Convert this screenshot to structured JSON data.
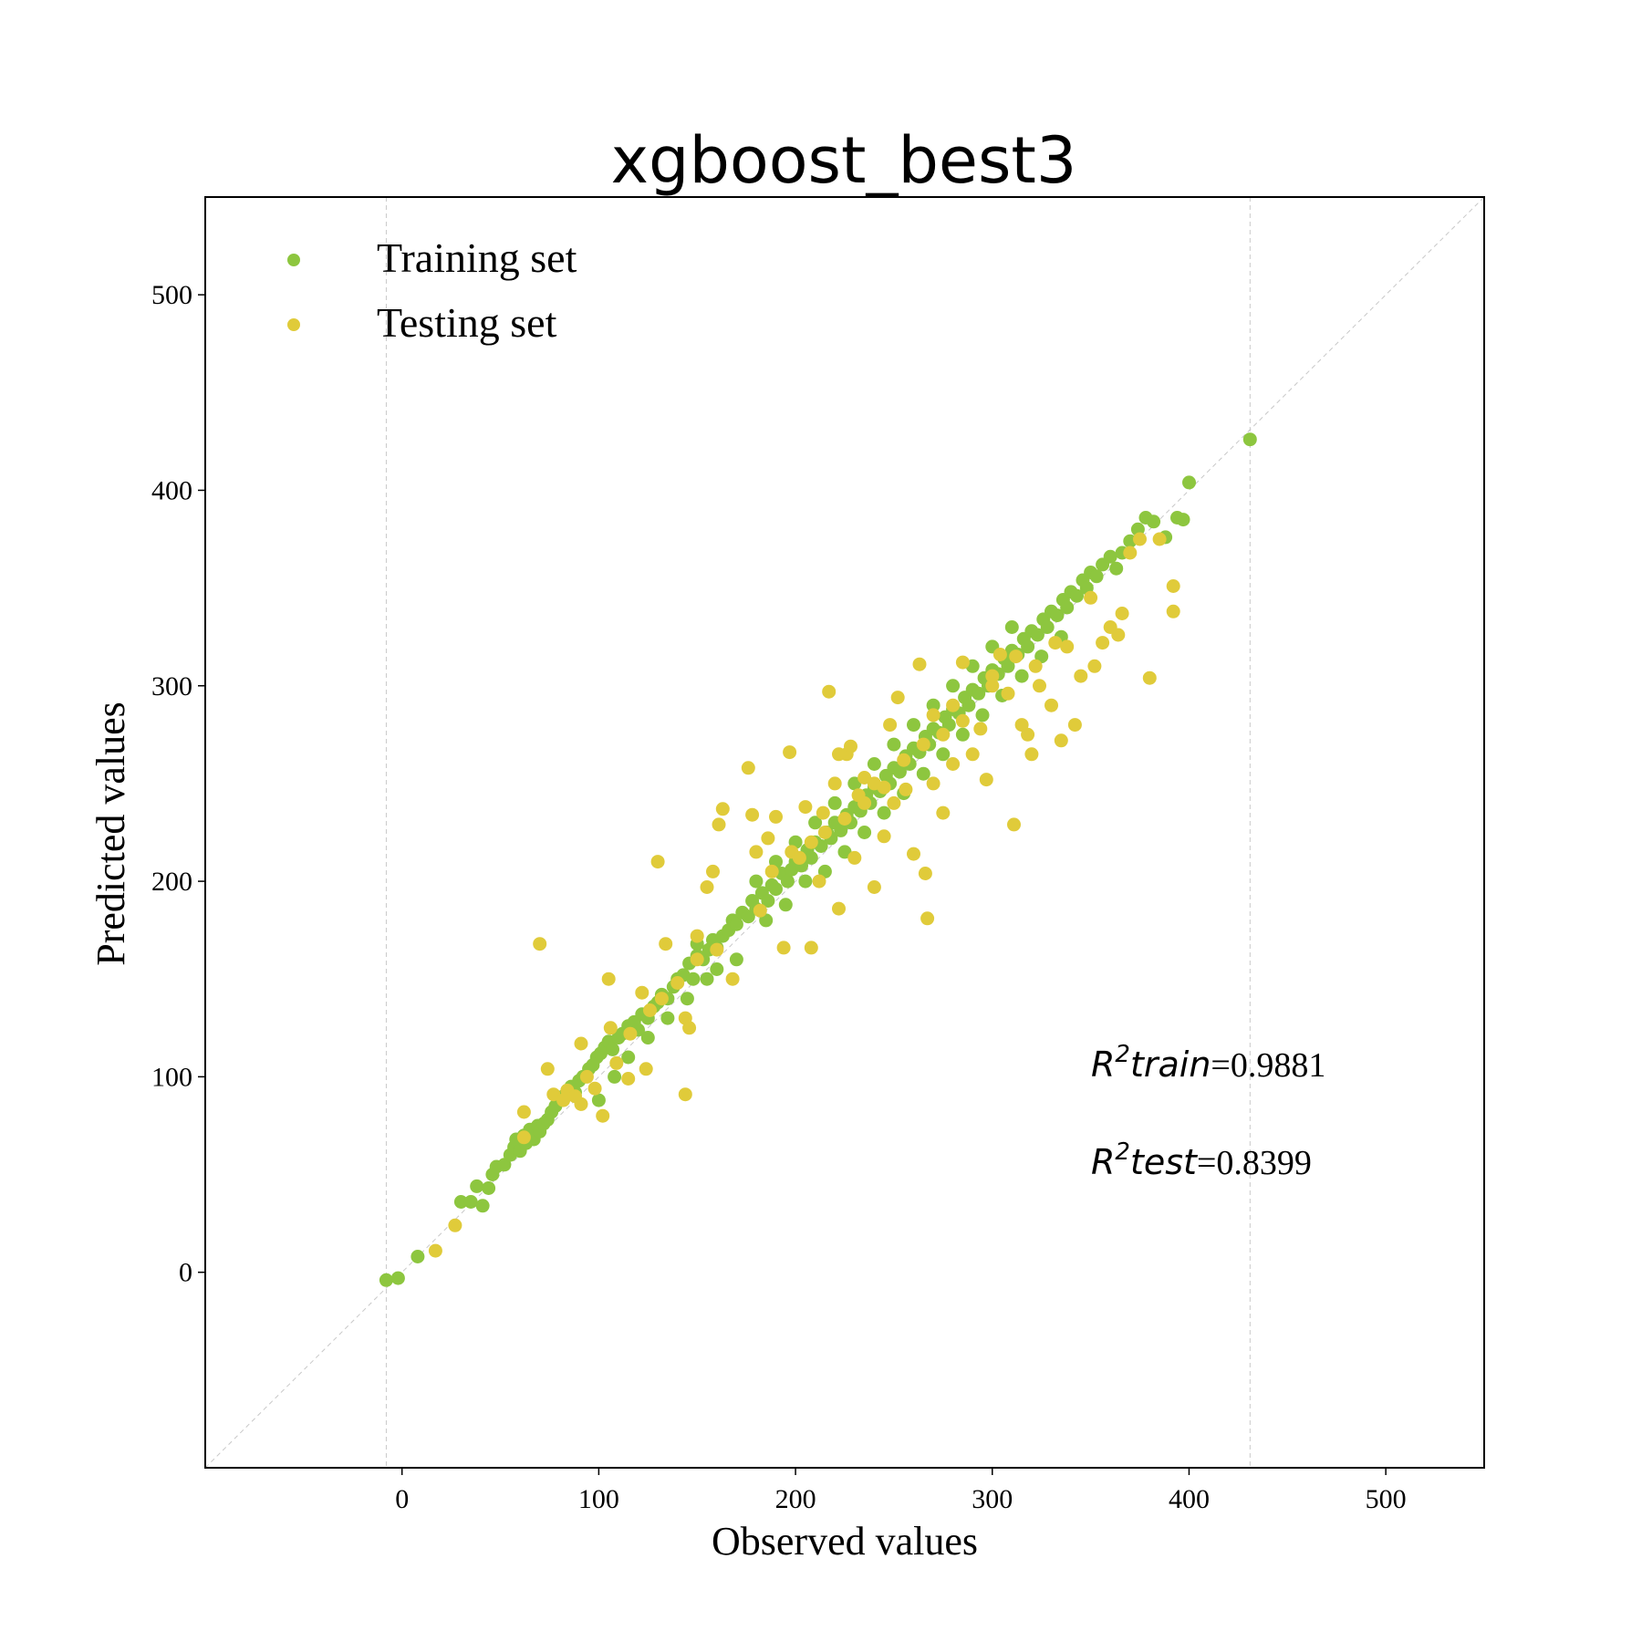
{
  "chart_data": {
    "type": "scatter",
    "title": "xgboost_best3",
    "xlabel": "Observed values",
    "ylabel": "Predicted values",
    "xlim": [
      -100,
      550
    ],
    "ylim": [
      -100,
      550
    ],
    "x_ticks": [
      0,
      100,
      200,
      300,
      400,
      500
    ],
    "y_ticks": [
      0,
      100,
      200,
      300,
      400,
      500
    ],
    "legend_position": "upper-left",
    "reference_line": "y = x",
    "vertical_lines": [
      -8,
      431
    ],
    "series": [
      {
        "name": "Training set",
        "color": "#8dc63f",
        "points": [
          [
            -8,
            -4
          ],
          [
            -2,
            -3
          ],
          [
            8,
            8
          ],
          [
            30,
            36
          ],
          [
            35,
            36
          ],
          [
            38,
            44
          ],
          [
            41,
            34
          ],
          [
            44,
            43
          ],
          [
            46,
            50
          ],
          [
            48,
            54
          ],
          [
            52,
            55
          ],
          [
            55,
            60
          ],
          [
            57,
            64
          ],
          [
            58,
            68
          ],
          [
            60,
            62
          ],
          [
            62,
            70
          ],
          [
            63,
            66
          ],
          [
            65,
            73
          ],
          [
            67,
            68
          ],
          [
            69,
            75
          ],
          [
            70,
            72
          ],
          [
            72,
            76
          ],
          [
            74,
            78
          ],
          [
            76,
            82
          ],
          [
            78,
            85
          ],
          [
            80,
            88
          ],
          [
            82,
            90
          ],
          [
            84,
            93
          ],
          [
            86,
            95
          ],
          [
            88,
            92
          ],
          [
            90,
            98
          ],
          [
            92,
            100
          ],
          [
            95,
            104
          ],
          [
            97,
            106
          ],
          [
            99,
            110
          ],
          [
            101,
            112
          ],
          [
            103,
            115
          ],
          [
            105,
            118
          ],
          [
            107,
            114
          ],
          [
            110,
            120
          ],
          [
            112,
            122
          ],
          [
            115,
            126
          ],
          [
            118,
            128
          ],
          [
            120,
            124
          ],
          [
            122,
            132
          ],
          [
            125,
            130
          ],
          [
            128,
            136
          ],
          [
            130,
            138
          ],
          [
            132,
            142
          ],
          [
            135,
            140
          ],
          [
            138,
            146
          ],
          [
            140,
            150
          ],
          [
            143,
            152
          ],
          [
            146,
            158
          ],
          [
            148,
            150
          ],
          [
            150,
            162
          ],
          [
            153,
            160
          ],
          [
            156,
            165
          ],
          [
            158,
            170
          ],
          [
            160,
            166
          ],
          [
            163,
            172
          ],
          [
            166,
            175
          ],
          [
            168,
            180
          ],
          [
            170,
            178
          ],
          [
            173,
            184
          ],
          [
            176,
            182
          ],
          [
            178,
            190
          ],
          [
            180,
            186
          ],
          [
            183,
            194
          ],
          [
            186,
            190
          ],
          [
            188,
            198
          ],
          [
            190,
            196
          ],
          [
            193,
            204
          ],
          [
            196,
            200
          ],
          [
            198,
            206
          ],
          [
            200,
            210
          ],
          [
            203,
            208
          ],
          [
            206,
            216
          ],
          [
            208,
            212
          ],
          [
            210,
            220
          ],
          [
            213,
            218
          ],
          [
            216,
            225
          ],
          [
            218,
            222
          ],
          [
            220,
            230
          ],
          [
            223,
            226
          ],
          [
            226,
            234
          ],
          [
            228,
            230
          ],
          [
            230,
            238
          ],
          [
            233,
            236
          ],
          [
            236,
            244
          ],
          [
            238,
            240
          ],
          [
            240,
            248
          ],
          [
            243,
            246
          ],
          [
            246,
            254
          ],
          [
            248,
            250
          ],
          [
            250,
            258
          ],
          [
            253,
            256
          ],
          [
            256,
            264
          ],
          [
            258,
            260
          ],
          [
            260,
            268
          ],
          [
            263,
            266
          ],
          [
            266,
            274
          ],
          [
            268,
            270
          ],
          [
            270,
            278
          ],
          [
            273,
            276
          ],
          [
            276,
            284
          ],
          [
            278,
            280
          ],
          [
            280,
            288
          ],
          [
            283,
            286
          ],
          [
            286,
            294
          ],
          [
            288,
            290
          ],
          [
            290,
            298
          ],
          [
            293,
            296
          ],
          [
            296,
            304
          ],
          [
            298,
            300
          ],
          [
            300,
            308
          ],
          [
            303,
            306
          ],
          [
            306,
            314
          ],
          [
            308,
            310
          ],
          [
            310,
            318
          ],
          [
            313,
            316
          ],
          [
            316,
            324
          ],
          [
            318,
            320
          ],
          [
            320,
            328
          ],
          [
            323,
            326
          ],
          [
            326,
            334
          ],
          [
            328,
            330
          ],
          [
            330,
            338
          ],
          [
            333,
            336
          ],
          [
            336,
            344
          ],
          [
            338,
            340
          ],
          [
            340,
            348
          ],
          [
            343,
            346
          ],
          [
            346,
            354
          ],
          [
            348,
            350
          ],
          [
            350,
            358
          ],
          [
            353,
            356
          ],
          [
            356,
            362
          ],
          [
            360,
            366
          ],
          [
            363,
            360
          ],
          [
            366,
            368
          ],
          [
            370,
            374
          ],
          [
            374,
            380
          ],
          [
            378,
            386
          ],
          [
            382,
            384
          ],
          [
            388,
            376
          ],
          [
            394,
            386
          ],
          [
            397,
            385
          ],
          [
            400,
            404
          ],
          [
            431,
            426
          ],
          [
            185,
            180
          ],
          [
            195,
            188
          ],
          [
            205,
            200
          ],
          [
            215,
            205
          ],
          [
            225,
            215
          ],
          [
            235,
            225
          ],
          [
            245,
            235
          ],
          [
            255,
            245
          ],
          [
            265,
            255
          ],
          [
            275,
            265
          ],
          [
            285,
            275
          ],
          [
            295,
            285
          ],
          [
            305,
            295
          ],
          [
            315,
            305
          ],
          [
            325,
            315
          ],
          [
            335,
            325
          ],
          [
            180,
            200
          ],
          [
            190,
            210
          ],
          [
            200,
            220
          ],
          [
            210,
            230
          ],
          [
            220,
            240
          ],
          [
            230,
            250
          ],
          [
            240,
            260
          ],
          [
            250,
            270
          ],
          [
            260,
            280
          ],
          [
            270,
            290
          ],
          [
            280,
            300
          ],
          [
            290,
            310
          ],
          [
            300,
            320
          ],
          [
            310,
            330
          ],
          [
            150,
            168
          ],
          [
            160,
            155
          ],
          [
            170,
            160
          ],
          [
            100,
            88
          ],
          [
            108,
            100
          ],
          [
            115,
            110
          ],
          [
            125,
            120
          ],
          [
            135,
            130
          ],
          [
            145,
            140
          ],
          [
            155,
            150
          ]
        ]
      },
      {
        "name": "Testing set",
        "color": "#e0cb3a",
        "points": [
          [
            17,
            11
          ],
          [
            27,
            24
          ],
          [
            62,
            69
          ],
          [
            62,
            82
          ],
          [
            70,
            168
          ],
          [
            74,
            104
          ],
          [
            77,
            91
          ],
          [
            84,
            93
          ],
          [
            91,
            117
          ],
          [
            91,
            86
          ],
          [
            98,
            94
          ],
          [
            102,
            80
          ],
          [
            105,
            150
          ],
          [
            106,
            125
          ],
          [
            109,
            107
          ],
          [
            115,
            99
          ],
          [
            122,
            143
          ],
          [
            124,
            104
          ],
          [
            130,
            210
          ],
          [
            134,
            168
          ],
          [
            144,
            91
          ],
          [
            144,
            130
          ],
          [
            146,
            125
          ],
          [
            150,
            172
          ],
          [
            155,
            197
          ],
          [
            158,
            205
          ],
          [
            163,
            237
          ],
          [
            161,
            229
          ],
          [
            168,
            150
          ],
          [
            176,
            258
          ],
          [
            178,
            234
          ],
          [
            180,
            215
          ],
          [
            182,
            185
          ],
          [
            186,
            222
          ],
          [
            190,
            233
          ],
          [
            194,
            166
          ],
          [
            197,
            266
          ],
          [
            205,
            238
          ],
          [
            208,
            166
          ],
          [
            214,
            235
          ],
          [
            217,
            297
          ],
          [
            220,
            250
          ],
          [
            222,
            265
          ],
          [
            226,
            265
          ],
          [
            228,
            269
          ],
          [
            232,
            244
          ],
          [
            235,
            253
          ],
          [
            240,
            197
          ],
          [
            245,
            223
          ],
          [
            248,
            280
          ],
          [
            252,
            294
          ],
          [
            256,
            247
          ],
          [
            260,
            214
          ],
          [
            263,
            311
          ],
          [
            266,
            204
          ],
          [
            267,
            181
          ],
          [
            270,
            250
          ],
          [
            275,
            235
          ],
          [
            280,
            260
          ],
          [
            285,
            312
          ],
          [
            290,
            265
          ],
          [
            294,
            278
          ],
          [
            297,
            252
          ],
          [
            300,
            300
          ],
          [
            304,
            316
          ],
          [
            308,
            296
          ],
          [
            311,
            229
          ],
          [
            315,
            280
          ],
          [
            318,
            275
          ],
          [
            320,
            265
          ],
          [
            324,
            300
          ],
          [
            330,
            290
          ],
          [
            335,
            272
          ],
          [
            338,
            320
          ],
          [
            342,
            280
          ],
          [
            345,
            305
          ],
          [
            350,
            345
          ],
          [
            352,
            310
          ],
          [
            356,
            322
          ],
          [
            360,
            330
          ],
          [
            364,
            326
          ],
          [
            366,
            337
          ],
          [
            370,
            368
          ],
          [
            375,
            375
          ],
          [
            380,
            304
          ],
          [
            385,
            375
          ],
          [
            392,
            338
          ],
          [
            392,
            351
          ],
          [
            188,
            205
          ],
          [
            198,
            215
          ],
          [
            208,
            220
          ],
          [
            215,
            225
          ],
          [
            225,
            232
          ],
          [
            235,
            240
          ],
          [
            245,
            248
          ],
          [
            255,
            262
          ],
          [
            265,
            270
          ],
          [
            275,
            275
          ],
          [
            285,
            282
          ],
          [
            300,
            305
          ],
          [
            312,
            315
          ],
          [
            322,
            310
          ],
          [
            332,
            322
          ],
          [
            240,
            250
          ],
          [
            250,
            240
          ],
          [
            230,
            212
          ],
          [
            222,
            186
          ],
          [
            212,
            200
          ],
          [
            202,
            212
          ],
          [
            160,
            165
          ],
          [
            150,
            160
          ],
          [
            140,
            148
          ],
          [
            132,
            140
          ],
          [
            126,
            134
          ],
          [
            116,
            122
          ],
          [
            94,
            100
          ],
          [
            88,
            90
          ],
          [
            82,
            88
          ],
          [
            270,
            285
          ],
          [
            280,
            290
          ]
        ]
      }
    ],
    "annotations": [
      {
        "math": "R",
        "sup": "2",
        "name": "train",
        "value": "=0.9881",
        "x": 350,
        "y": 100
      },
      {
        "math": "R",
        "sup": "2",
        "name": "test",
        "value": "=0.8399",
        "x": 350,
        "y": 50
      }
    ]
  }
}
